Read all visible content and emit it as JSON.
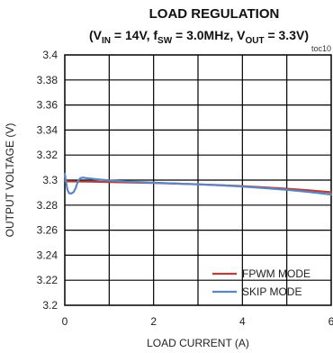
{
  "chart_data": {
    "type": "line",
    "title": "LOAD REGULATION",
    "subtitle": {
      "parts": [
        {
          "t": "(V"
        },
        {
          "t": "IN",
          "sub": true
        },
        {
          "t": " = 14V, f"
        },
        {
          "t": "SW",
          "sub": true
        },
        {
          "t": " = 3.0MHz, V"
        },
        {
          "t": "OUT",
          "sub": true
        },
        {
          "t": " = 3.3V)"
        }
      ]
    },
    "code": "toc10",
    "xlabel": "LOAD CURRENT (A)",
    "ylabel": "OUTPUT VOLTAGE (V)",
    "xlim": [
      0,
      6
    ],
    "ylim": [
      3.2,
      3.4
    ],
    "x_ticks": [
      "0",
      "2",
      "4",
      "6"
    ],
    "y_ticks": [
      "3.4",
      "3.38",
      "3.36",
      "3.34",
      "3.32",
      "3.3",
      "3.28",
      "3.26",
      "3.24",
      "3.22",
      "3.2"
    ],
    "grid": true,
    "legend_position": "bottom-right",
    "series": [
      {
        "name": "FPWM MODE",
        "color": "#b5413f",
        "x": [
          0,
          0.5,
          1,
          1.5,
          2,
          2.5,
          3,
          3.5,
          4,
          4.5,
          5,
          5.5,
          6
        ],
        "y": [
          3.299,
          3.2988,
          3.2985,
          3.2981,
          3.2977,
          3.2972,
          3.2966,
          3.296,
          3.2952,
          3.2942,
          3.2931,
          3.2918,
          3.2903
        ]
      },
      {
        "name": "SKIP MODE",
        "color": "#5b86c1",
        "x": [
          0,
          0.03,
          0.06,
          0.1,
          0.15,
          0.2,
          0.25,
          0.3,
          0.35,
          0.4,
          0.5,
          0.7,
          1,
          1.5,
          2,
          2.5,
          3,
          3.5,
          4,
          4.5,
          5,
          5.5,
          6
        ],
        "y": [
          3.305,
          3.298,
          3.292,
          3.2895,
          3.2893,
          3.2905,
          3.294,
          3.2995,
          3.3015,
          3.302,
          3.3015,
          3.3007,
          3.2997,
          3.2986,
          3.2979,
          3.2973,
          3.2966,
          3.2958,
          3.2948,
          3.2936,
          3.2922,
          3.2905,
          3.2885
        ]
      }
    ]
  }
}
